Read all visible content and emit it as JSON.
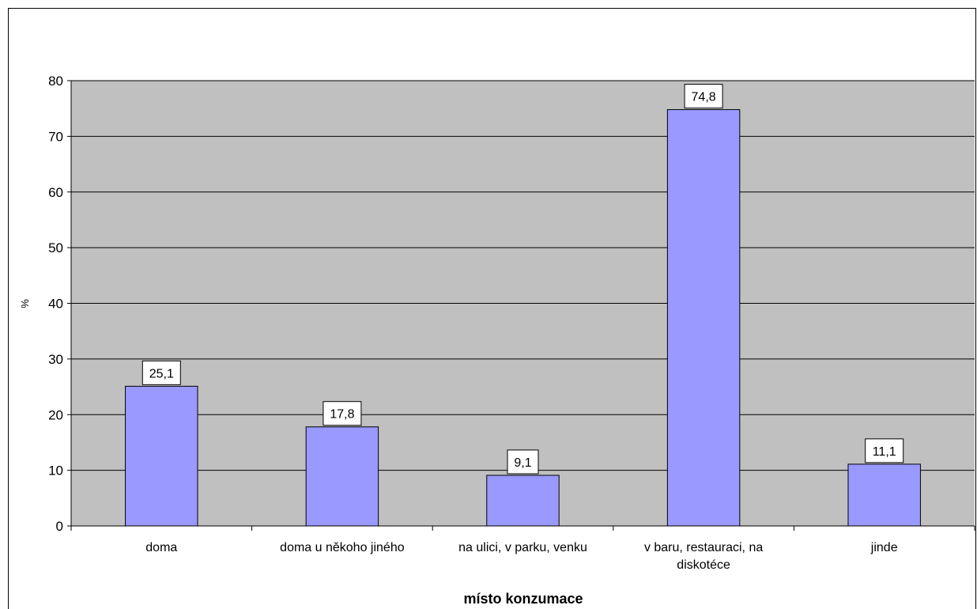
{
  "chart_data": {
    "type": "bar",
    "title": "",
    "categories": [
      [
        "doma"
      ],
      [
        "doma u někoho jiného"
      ],
      [
        "na ulici, v parku, venku"
      ],
      [
        "v baru, restauraci, na",
        "diskotéce"
      ],
      [
        "jinde"
      ]
    ],
    "values": [
      25.1,
      17.8,
      9.1,
      74.8,
      11.1
    ],
    "value_labels": [
      "25,1",
      "17,8",
      "9,1",
      "74,8",
      "11,1"
    ],
    "xlabel": "místo konzumace",
    "ylabel": "%",
    "ylim": [
      0,
      80
    ],
    "yticks": [
      0,
      10,
      20,
      30,
      40,
      50,
      60,
      70,
      80
    ],
    "grid": true,
    "legend": "none",
    "colors": {
      "plot_background": "#c0c0c0",
      "bar_fill": "#9999ff",
      "bar_stroke": "#000000",
      "gridline": "#000000",
      "label_box": "#ffffff"
    }
  }
}
